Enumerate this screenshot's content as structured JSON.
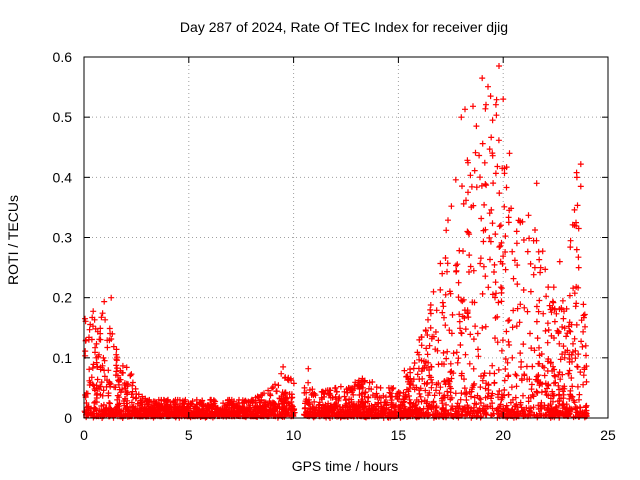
{
  "chart_data": {
    "type": "scatter",
    "title": "Day 287 of 2024, Rate Of TEC Index for receiver djig",
    "xlabel": "GPS time / hours",
    "ylabel": "ROTI / TECUs",
    "xlim": [
      0,
      25
    ],
    "ylim": [
      0,
      0.6
    ],
    "grid": true,
    "marker": "+",
    "color": "#ff0000",
    "x_ticks": [
      0,
      5,
      10,
      15,
      20,
      25
    ],
    "x_tick_labels": [
      "0",
      "5",
      "10",
      "15",
      "20",
      "25"
    ],
    "y_ticks": [
      0,
      0.1,
      0.2,
      0.3,
      0.4,
      0.5,
      0.6
    ],
    "y_tick_labels": [
      "0",
      "0.1",
      "0.2",
      "0.3",
      "0.4",
      "0.5",
      "0.6"
    ],
    "envelope": {
      "description_x_hours": [
        0.0,
        0.3,
        0.6,
        0.9,
        1.2,
        1.5,
        1.8,
        2.2,
        2.6,
        3.0,
        4.0,
        5.0,
        6.0,
        7.0,
        8.0,
        9.0,
        9.5,
        10.0,
        10.2,
        10.6,
        11.0,
        12.0,
        13.0,
        13.5,
        14.0,
        14.5,
        15.0,
        15.5,
        16.0,
        16.5,
        17.0,
        17.5,
        18.0,
        18.5,
        19.0,
        19.5,
        20.0,
        20.5,
        21.0,
        21.5,
        22.0,
        22.5,
        23.0,
        23.5,
        24.0
      ],
      "upper_roti": [
        0.16,
        0.19,
        0.17,
        0.2,
        0.19,
        0.12,
        0.09,
        0.08,
        0.04,
        0.03,
        0.03,
        0.03,
        0.03,
        0.03,
        0.03,
        0.05,
        0.08,
        0.06,
        0.02,
        0.07,
        0.04,
        0.05,
        0.06,
        0.07,
        0.05,
        0.05,
        0.05,
        0.1,
        0.13,
        0.18,
        0.27,
        0.35,
        0.5,
        0.54,
        0.56,
        0.58,
        0.5,
        0.3,
        0.38,
        0.34,
        0.26,
        0.22,
        0.2,
        0.42,
        0.15
      ]
    },
    "annotated_points": [
      {
        "x": 0.05,
        "y": 0.165
      },
      {
        "x": 1.3,
        "y": 0.2
      },
      {
        "x": 9.5,
        "y": 0.085
      },
      {
        "x": 10.7,
        "y": 0.082
      },
      {
        "x": 18.0,
        "y": 0.5
      },
      {
        "x": 19.0,
        "y": 0.565
      },
      {
        "x": 19.8,
        "y": 0.585
      },
      {
        "x": 19.4,
        "y": 0.535
      },
      {
        "x": 20.0,
        "y": 0.53
      },
      {
        "x": 20.3,
        "y": 0.44
      },
      {
        "x": 21.6,
        "y": 0.39
      },
      {
        "x": 22.7,
        "y": 0.26
      },
      {
        "x": 23.7,
        "y": 0.422
      },
      {
        "x": 23.7,
        "y": 0.385
      },
      {
        "x": 23.6,
        "y": 0.315
      },
      {
        "x": 23.6,
        "y": 0.25
      }
    ]
  }
}
